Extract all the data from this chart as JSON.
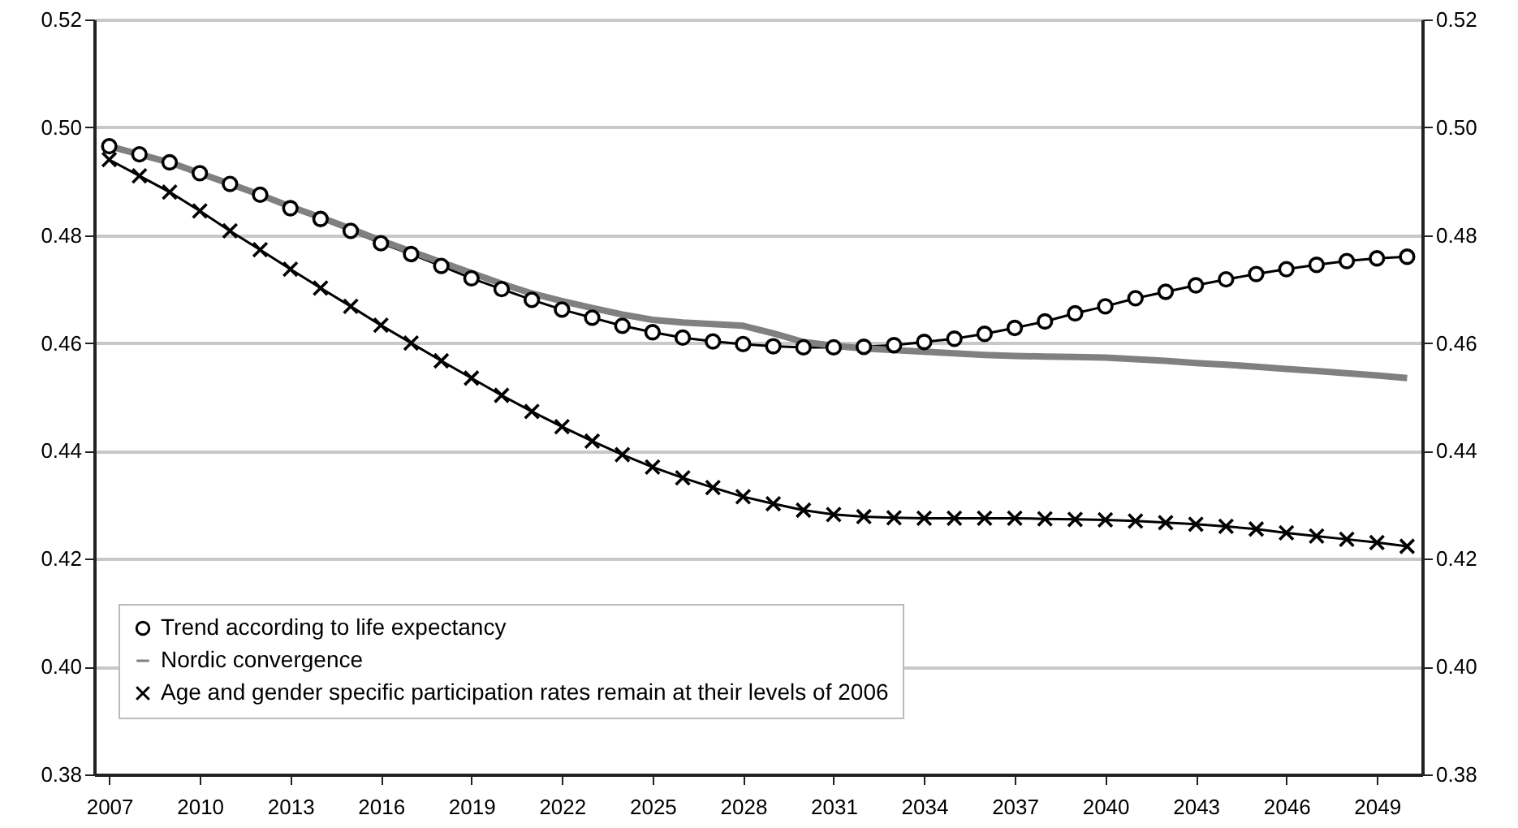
{
  "chart_data": {
    "type": "line",
    "x": [
      2007,
      2008,
      2009,
      2010,
      2011,
      2012,
      2013,
      2014,
      2015,
      2016,
      2017,
      2018,
      2019,
      2020,
      2021,
      2022,
      2023,
      2024,
      2025,
      2026,
      2027,
      2028,
      2029,
      2030,
      2031,
      2032,
      2033,
      2034,
      2035,
      2036,
      2037,
      2038,
      2039,
      2040,
      2041,
      2042,
      2043,
      2044,
      2045,
      2046,
      2047,
      2048,
      2049,
      2050
    ],
    "series": [
      {
        "name": "Trend according to life expectancy",
        "color": "#000000",
        "marker": "circle",
        "values": [
          0.4965,
          0.495,
          0.4935,
          0.4915,
          0.4895,
          0.4875,
          0.485,
          0.483,
          0.4808,
          0.4785,
          0.4765,
          0.4743,
          0.472,
          0.47,
          0.468,
          0.4662,
          0.4647,
          0.4632,
          0.462,
          0.461,
          0.4603,
          0.4598,
          0.4594,
          0.4592,
          0.4592,
          0.4593,
          0.4596,
          0.4602,
          0.4608,
          0.4617,
          0.4628,
          0.464,
          0.4655,
          0.4668,
          0.4683,
          0.4695,
          0.4707,
          0.4718,
          0.4728,
          0.4737,
          0.4745,
          0.4752,
          0.4757,
          0.476
        ]
      },
      {
        "name": "Nordic convergence",
        "color": "#808080",
        "marker": "none",
        "values": [
          0.4965,
          0.495,
          0.4935,
          0.4915,
          0.4895,
          0.4875,
          0.4853,
          0.4833,
          0.4812,
          0.479,
          0.477,
          0.475,
          0.473,
          0.471,
          0.4692,
          0.4678,
          0.4665,
          0.4653,
          0.4643,
          0.4638,
          0.4635,
          0.4632,
          0.4618,
          0.4602,
          0.4595,
          0.459,
          0.4587,
          0.4584,
          0.4581,
          0.4578,
          0.4576,
          0.4575,
          0.4574,
          0.4573,
          0.457,
          0.4567,
          0.4563,
          0.456,
          0.4556,
          0.4552,
          0.4548,
          0.4544,
          0.454,
          0.4535
        ]
      },
      {
        "name": "Age and gender specific participation rates remain at their levels of 2006",
        "color": "#000000",
        "marker": "cross",
        "values": [
          0.494,
          0.491,
          0.488,
          0.4845,
          0.4808,
          0.4773,
          0.4737,
          0.4702,
          0.4668,
          0.4633,
          0.46,
          0.4567,
          0.4535,
          0.4503,
          0.4473,
          0.4445,
          0.4418,
          0.4393,
          0.437,
          0.435,
          0.4332,
          0.4315,
          0.4302,
          0.429,
          0.4282,
          0.4278,
          0.4276,
          0.4275,
          0.4275,
          0.4275,
          0.4275,
          0.4274,
          0.4273,
          0.4272,
          0.427,
          0.4267,
          0.4264,
          0.426,
          0.4255,
          0.4248,
          0.4242,
          0.4236,
          0.423,
          0.4223
        ]
      }
    ],
    "xlim": [
      2006.5,
      2050.5
    ],
    "xticks": [
      2007,
      2010,
      2013,
      2016,
      2019,
      2022,
      2025,
      2028,
      2031,
      2034,
      2037,
      2040,
      2043,
      2046,
      2049
    ],
    "ylim": [
      0.38,
      0.52
    ],
    "yticks": [
      0.38,
      {
        "value": 0.4,
        "label": "0.40"
      },
      0.42,
      0.44,
      0.46,
      0.48,
      {
        "value": 0.5,
        "label": "0.50"
      },
      0.52
    ],
    "y2lim": [
      0.38,
      0.52
    ],
    "y2ticks": [
      0.38,
      {
        "value": 0.4,
        "label": "0.40"
      },
      0.42,
      0.44,
      0.46,
      0.48,
      {
        "value": 0.5,
        "label": "0.50"
      },
      0.52
    ],
    "grid": "y",
    "legend": "bottom left"
  }
}
